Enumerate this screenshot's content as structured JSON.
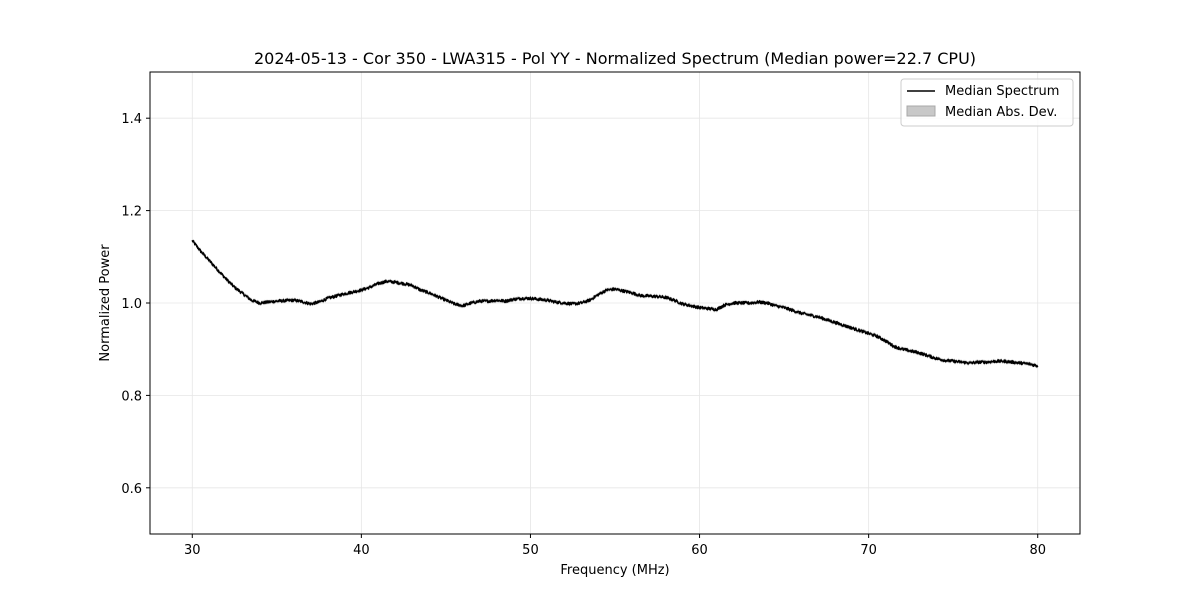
{
  "chart_data": {
    "type": "line",
    "title": "2024-05-13 - Cor 350 - LWA315 - Pol YY - Normalized Spectrum (Median power=22.7 CPU)",
    "xlabel": "Frequency (MHz)",
    "ylabel": "Normalized Power",
    "xlim": [
      27.5,
      82.5
    ],
    "ylim": [
      0.5,
      1.5
    ],
    "xticks": [
      30,
      40,
      50,
      60,
      70,
      80
    ],
    "xtick_labels": [
      "30",
      "40",
      "50",
      "60",
      "70",
      "80"
    ],
    "yticks": [
      0.6,
      0.8,
      1.0,
      1.2,
      1.4
    ],
    "ytick_labels": [
      "0.6",
      "0.8",
      "1.0",
      "1.2",
      "1.4"
    ],
    "grid": true,
    "legend_position": "top-right",
    "legend": [
      {
        "label": "Median Spectrum",
        "kind": "line",
        "color": "#000000"
      },
      {
        "label": "Median Abs. Dev.",
        "kind": "band",
        "color": "#c8c8c8"
      }
    ],
    "series": [
      {
        "name": "Median Spectrum",
        "color": "#000000",
        "x": [
          30,
          30.5,
          31,
          31.5,
          32,
          32.5,
          33,
          33.5,
          34,
          34.5,
          35,
          35.5,
          36,
          36.5,
          37,
          37.5,
          38,
          38.5,
          39,
          39.5,
          40,
          40.5,
          41,
          41.5,
          42,
          42.5,
          43,
          43.5,
          44,
          44.5,
          45,
          45.5,
          46,
          46.5,
          47,
          47.5,
          48,
          48.5,
          49,
          49.5,
          50,
          50.5,
          51,
          51.5,
          52,
          52.5,
          53,
          53.5,
          54,
          54.5,
          55,
          55.5,
          56,
          56.5,
          57,
          57.5,
          58,
          58.5,
          59,
          59.5,
          60,
          60.5,
          61,
          61.5,
          62,
          62.5,
          63,
          63.5,
          64,
          64.5,
          65,
          65.5,
          66,
          66.5,
          67,
          67.5,
          68,
          68.5,
          69,
          69.5,
          70,
          70.5,
          71,
          71.5,
          72,
          72.5,
          73,
          73.5,
          74,
          74.5,
          75,
          75.5,
          76,
          76.5,
          77,
          77.5,
          78,
          78.5,
          79,
          79.5,
          80
        ],
        "y": [
          1.135,
          1.112,
          1.092,
          1.072,
          1.052,
          1.034,
          1.02,
          1.006,
          1.0,
          1.002,
          1.004,
          1.005,
          1.006,
          1.003,
          0.998,
          1.002,
          1.01,
          1.015,
          1.02,
          1.024,
          1.028,
          1.034,
          1.042,
          1.047,
          1.045,
          1.042,
          1.038,
          1.028,
          1.022,
          1.014,
          1.006,
          0.998,
          0.994,
          1.0,
          1.004,
          1.004,
          1.006,
          1.004,
          1.008,
          1.01,
          1.01,
          1.008,
          1.006,
          1.002,
          1.0,
          0.998,
          1.0,
          1.006,
          1.018,
          1.028,
          1.03,
          1.026,
          1.022,
          1.016,
          1.015,
          1.014,
          1.012,
          1.006,
          0.998,
          0.994,
          0.99,
          0.988,
          0.986,
          0.996,
          1.0,
          1.0,
          1.0,
          1.002,
          1.0,
          0.994,
          0.99,
          0.984,
          0.978,
          0.974,
          0.97,
          0.964,
          0.958,
          0.952,
          0.946,
          0.94,
          0.934,
          0.928,
          0.918,
          0.906,
          0.9,
          0.896,
          0.892,
          0.886,
          0.88,
          0.876,
          0.874,
          0.872,
          0.87,
          0.872,
          0.872,
          0.874,
          0.874,
          0.872,
          0.87,
          0.868,
          0.864
        ]
      }
    ],
    "mad_band": 0.004
  }
}
